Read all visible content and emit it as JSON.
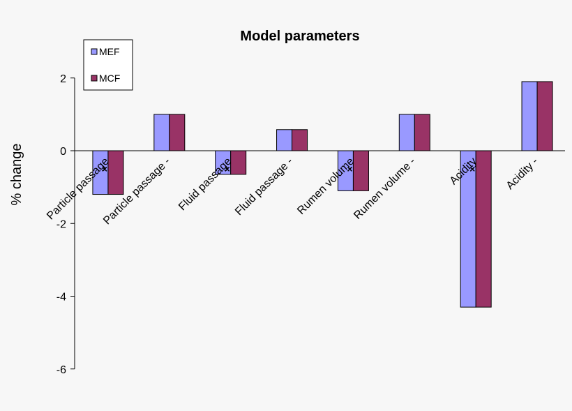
{
  "chart_data": {
    "type": "bar",
    "title": "Model parameters",
    "xlabel": "",
    "ylabel": "% change",
    "ylim": [
      -6,
      2
    ],
    "yticks": [
      2,
      0,
      -2,
      -4,
      -6
    ],
    "categories": [
      "Particle passage",
      "Particle passage -",
      "Fluid passage",
      "Fluid passage -",
      "Rumen volume",
      "Rumen volume -",
      "Acidity",
      "Acidity -"
    ],
    "category_markers": [
      "×",
      "",
      "×",
      "",
      "×",
      "",
      "×",
      ""
    ],
    "series": [
      {
        "name": "MEF",
        "color": "#9999ff",
        "values": [
          -1.2,
          1.0,
          -0.65,
          0.58,
          -1.1,
          1.0,
          -4.3,
          1.9
        ]
      },
      {
        "name": "MCF",
        "color": "#993366",
        "values": [
          -1.2,
          1.0,
          -0.65,
          0.58,
          -1.1,
          1.0,
          -4.3,
          1.9
        ]
      }
    ],
    "legend_position": "top-left",
    "grid": false
  }
}
